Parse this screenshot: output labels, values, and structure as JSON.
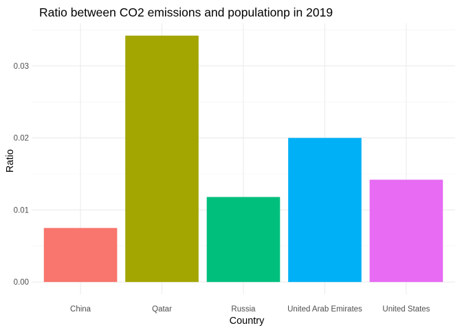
{
  "chart_data": {
    "type": "bar",
    "title": "Ratio between CO2 emissions and populationp in 2019",
    "xlabel": "Country",
    "ylabel": "Ratio",
    "categories": [
      "China",
      "Qatar",
      "Russia",
      "United Arab Emirates",
      "United States"
    ],
    "values": [
      0.0075,
      0.0342,
      0.0118,
      0.02,
      0.0142
    ],
    "colors": [
      "#F8766D",
      "#A3A500",
      "#00BF7D",
      "#00B0F6",
      "#E76BF3"
    ],
    "yticks": [
      0.0,
      0.01,
      0.02,
      0.03
    ],
    "ytick_labels": [
      "0.00",
      "0.01",
      "0.02",
      "0.03"
    ],
    "ylim": [
      -0.0017,
      0.0359
    ],
    "grid": true,
    "legend": "none"
  }
}
